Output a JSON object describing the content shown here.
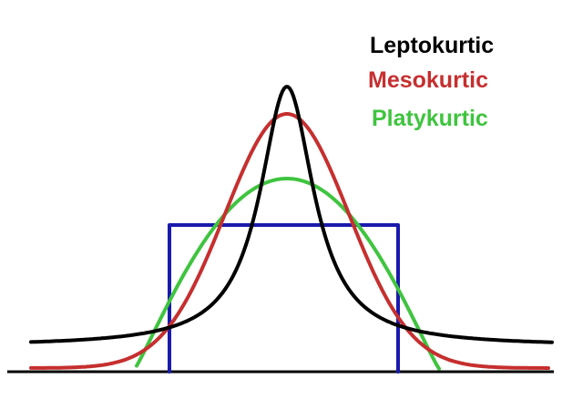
{
  "legend": {
    "leptokurtic": {
      "label": "Leptokurtic",
      "color": "#000000"
    },
    "mesokurtic": {
      "label": "Mesokurtic",
      "color": "#c62f2f"
    },
    "platykurtic": {
      "label": "Platykurtic",
      "color": "#3fc43f"
    }
  },
  "uniform_color": "#1a1aad",
  "baseline_color": "#000000"
}
